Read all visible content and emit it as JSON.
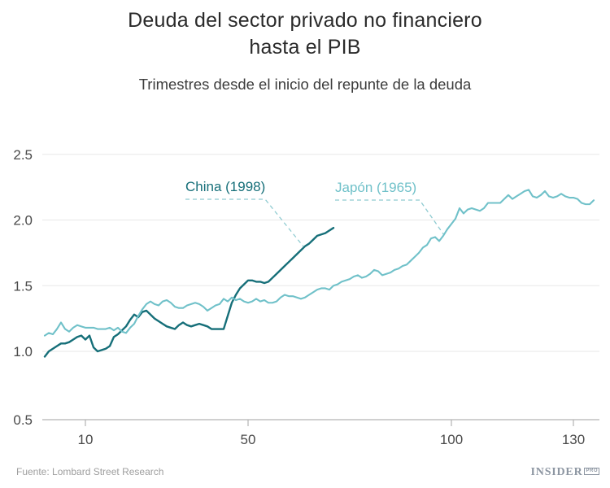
{
  "header": {
    "title_line1": "Deuda del sector privado no financiero",
    "title_line2": "hasta el PIB",
    "subtitle": "Trimestres desde el inicio del repunte de la deuda"
  },
  "chart_data": {
    "type": "line",
    "title": "Deuda del sector privado no financiero hasta el PIB",
    "xlabel": "Trimestres desde el inicio del repunte de la deuda",
    "ylabel": "",
    "x_ticks": [
      10,
      50,
      100,
      130
    ],
    "y_ticks": [
      0.5,
      1.0,
      1.5,
      2.0,
      2.5
    ],
    "ylim": [
      0.5,
      2.5
    ],
    "grid": true,
    "x_unit_step": 1,
    "series": [
      {
        "name": "China (1998)",
        "color": "#166f79",
        "x_start": 0,
        "values": [
          0.96,
          1.0,
          1.02,
          1.04,
          1.06,
          1.06,
          1.07,
          1.09,
          1.11,
          1.12,
          1.09,
          1.12,
          1.03,
          1.0,
          1.01,
          1.02,
          1.04,
          1.11,
          1.13,
          1.16,
          1.19,
          1.24,
          1.28,
          1.26,
          1.3,
          1.31,
          1.28,
          1.25,
          1.23,
          1.21,
          1.19,
          1.18,
          1.17,
          1.2,
          1.22,
          1.2,
          1.19,
          1.2,
          1.21,
          1.2,
          1.19,
          1.17,
          1.17,
          1.17,
          1.17,
          1.27,
          1.37,
          1.43,
          1.48,
          1.51,
          1.54,
          1.54,
          1.53,
          1.53,
          1.52,
          1.53,
          1.56,
          1.59,
          1.62,
          1.65,
          1.68,
          1.71,
          1.74,
          1.77,
          1.8,
          1.82,
          1.85,
          1.88,
          1.89,
          1.9,
          1.92,
          1.94
        ]
      },
      {
        "name": "Japón (1965)",
        "color": "#70c1c9",
        "x_start": 0,
        "values": [
          1.12,
          1.14,
          1.13,
          1.17,
          1.22,
          1.17,
          1.15,
          1.18,
          1.2,
          1.19,
          1.18,
          1.18,
          1.18,
          1.17,
          1.17,
          1.17,
          1.18,
          1.16,
          1.18,
          1.15,
          1.14,
          1.18,
          1.21,
          1.27,
          1.32,
          1.36,
          1.38,
          1.36,
          1.35,
          1.38,
          1.39,
          1.37,
          1.34,
          1.33,
          1.33,
          1.35,
          1.36,
          1.37,
          1.36,
          1.34,
          1.31,
          1.33,
          1.35,
          1.36,
          1.4,
          1.38,
          1.41,
          1.39,
          1.4,
          1.38,
          1.37,
          1.38,
          1.4,
          1.38,
          1.39,
          1.37,
          1.37,
          1.38,
          1.41,
          1.43,
          1.42,
          1.42,
          1.41,
          1.4,
          1.41,
          1.43,
          1.45,
          1.47,
          1.48,
          1.48,
          1.47,
          1.5,
          1.51,
          1.53,
          1.54,
          1.55,
          1.57,
          1.58,
          1.56,
          1.57,
          1.59,
          1.62,
          1.61,
          1.58,
          1.59,
          1.6,
          1.62,
          1.63,
          1.65,
          1.66,
          1.69,
          1.72,
          1.75,
          1.79,
          1.81,
          1.86,
          1.87,
          1.84,
          1.88,
          1.93,
          1.97,
          2.01,
          2.09,
          2.05,
          2.08,
          2.09,
          2.08,
          2.07,
          2.09,
          2.13,
          2.13,
          2.13,
          2.13,
          2.16,
          2.19,
          2.16,
          2.18,
          2.2,
          2.22,
          2.23,
          2.18,
          2.17,
          2.19,
          2.22,
          2.18,
          2.17,
          2.18,
          2.2,
          2.18,
          2.17,
          2.17,
          2.16,
          2.13,
          2.12,
          2.12,
          2.15
        ]
      }
    ],
    "colors": {
      "gridline": "#e7e7e7",
      "axis": "#b3b3b3",
      "tick_label": "#4a4a4a",
      "leader_dash": "#8fcbd1"
    }
  },
  "footer": {
    "source": "Fuente: Lombard Street Research",
    "logo_text": "INSIDER",
    "logo_badge": "PRO"
  }
}
